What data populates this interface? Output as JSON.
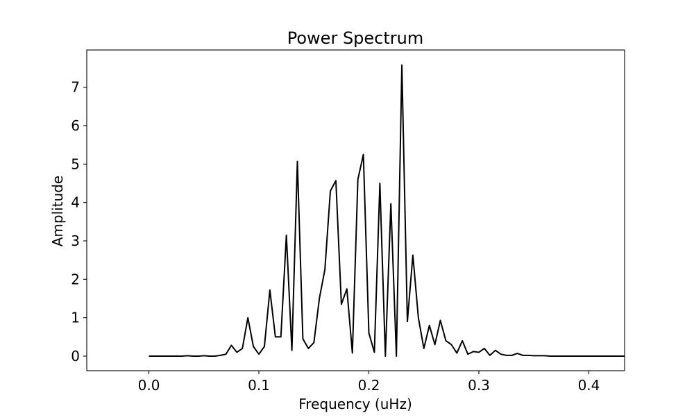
{
  "chart_data": {
    "type": "line",
    "title": "Power Spectrum",
    "xlabel": "Frequency (uHz)",
    "ylabel": "Amplitude",
    "xlim": [
      -0.0565,
      0.4325
    ],
    "ylim": [
      -0.38,
      7.97
    ],
    "xticks": [
      0.0,
      0.1,
      0.2,
      0.3,
      0.4
    ],
    "xtick_labels": [
      "0.0",
      "0.1",
      "0.2",
      "0.3",
      "0.4"
    ],
    "yticks": [
      0,
      1,
      2,
      3,
      4,
      5,
      6,
      7
    ],
    "ytick_labels": [
      "0",
      "1",
      "2",
      "3",
      "4",
      "5",
      "6",
      "7"
    ],
    "grid": false,
    "legend": "none",
    "series": [
      {
        "color": "#000000",
        "x": [
          0.0,
          0.005,
          0.01,
          0.015,
          0.02,
          0.025,
          0.03,
          0.035,
          0.04,
          0.045,
          0.05,
          0.055,
          0.06,
          0.065,
          0.07,
          0.075,
          0.08,
          0.085,
          0.09,
          0.095,
          0.1,
          0.105,
          0.11,
          0.115,
          0.12,
          0.125,
          0.13,
          0.135,
          0.14,
          0.145,
          0.15,
          0.155,
          0.16,
          0.165,
          0.17,
          0.175,
          0.18,
          0.185,
          0.19,
          0.195,
          0.2,
          0.205,
          0.21,
          0.215,
          0.22,
          0.225,
          0.23,
          0.235,
          0.24,
          0.245,
          0.25,
          0.255,
          0.26,
          0.265,
          0.27,
          0.275,
          0.28,
          0.285,
          0.29,
          0.295,
          0.3,
          0.305,
          0.31,
          0.315,
          0.32,
          0.325,
          0.33,
          0.335,
          0.34,
          0.345,
          0.35,
          0.355,
          0.36,
          0.365,
          0.37,
          0.375,
          0.38,
          0.385,
          0.39,
          0.395,
          0.4,
          0.405,
          0.41,
          0.415,
          0.42,
          0.425,
          0.43,
          0.4325
        ],
        "y": [
          0.0,
          0.0,
          0.0,
          0.0,
          0.0,
          0.0,
          0.0,
          0.01,
          0.0,
          0.0,
          0.01,
          0.0,
          0.0,
          0.02,
          0.05,
          0.28,
          0.1,
          0.2,
          1.0,
          0.25,
          0.05,
          0.25,
          1.72,
          0.5,
          0.5,
          3.15,
          0.15,
          5.07,
          0.45,
          0.2,
          0.35,
          1.5,
          2.25,
          4.3,
          4.57,
          1.35,
          1.75,
          0.08,
          4.6,
          5.25,
          0.6,
          0.1,
          4.5,
          0.0,
          3.97,
          0.0,
          7.58,
          0.9,
          2.63,
          1.0,
          0.2,
          0.8,
          0.3,
          0.93,
          0.4,
          0.3,
          0.08,
          0.4,
          0.05,
          0.12,
          0.1,
          0.2,
          0.02,
          0.15,
          0.05,
          0.02,
          0.02,
          0.07,
          0.02,
          0.02,
          0.01,
          0.01,
          0.01,
          0.0,
          0.0,
          0.0,
          0.0,
          0.0,
          0.0,
          0.0,
          0.0,
          0.0,
          0.0,
          0.0,
          0.0,
          0.0,
          0.0,
          0.0
        ]
      }
    ]
  }
}
